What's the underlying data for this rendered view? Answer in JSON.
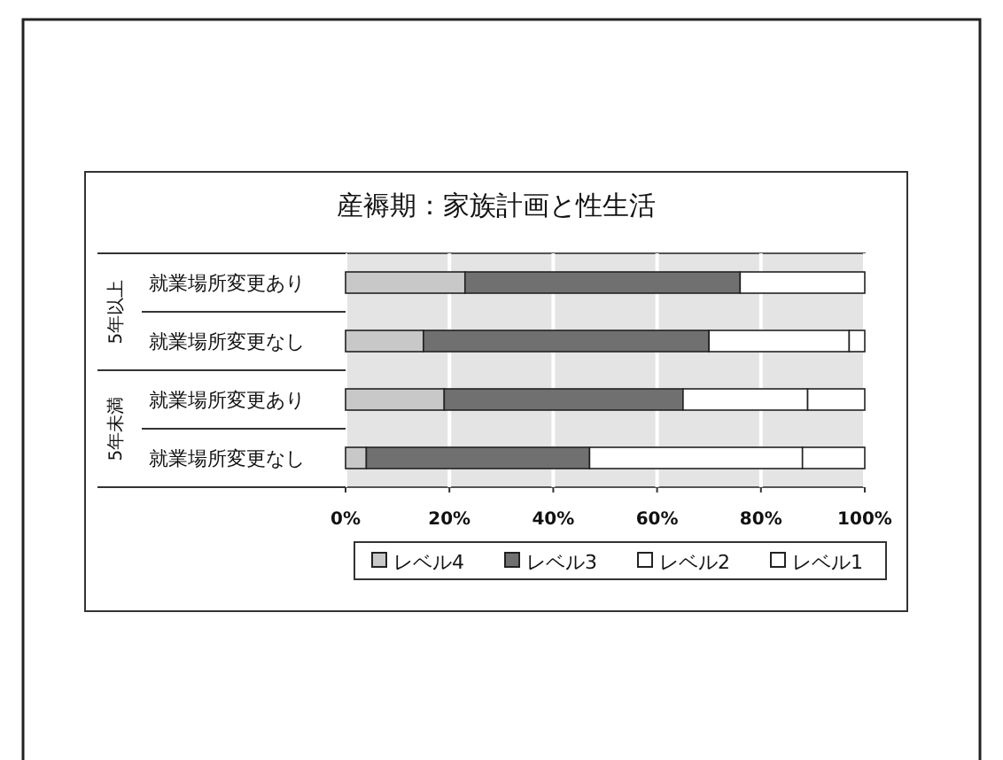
{
  "chart_data": {
    "type": "bar",
    "orientation": "horizontal",
    "stacked": true,
    "title": "産褥期：家族計画と性生活",
    "categories": [
      "就業場所変更あり",
      "就業場所変更なし",
      "就業場所変更あり",
      "就業場所変更なし"
    ],
    "annotations": [
      "5年以上",
      "5年未満"
    ],
    "series": [
      {
        "name": "レベル4",
        "color": "#c8c8c8",
        "values": [
          23,
          15,
          19,
          4
        ]
      },
      {
        "name": "レベル3",
        "color": "#707070",
        "values": [
          53,
          55,
          46,
          43
        ]
      },
      {
        "name": "レベル2",
        "color": "#ffffff",
        "values": [
          24,
          27,
          24,
          41
        ]
      },
      {
        "name": "レベル1",
        "color": "#ffffff",
        "values": [
          0,
          3,
          11,
          12
        ]
      }
    ],
    "xlim": [
      0,
      100
    ],
    "xticks": [
      {
        "value": 0,
        "label": "0%"
      },
      {
        "value": 20,
        "label": "20%"
      },
      {
        "value": 40,
        "label": "40%"
      },
      {
        "value": 60,
        "label": "60%"
      },
      {
        "value": 80,
        "label": "80%"
      },
      {
        "value": 100,
        "label": "100%"
      }
    ],
    "grid": "x",
    "legend": "bottom"
  }
}
